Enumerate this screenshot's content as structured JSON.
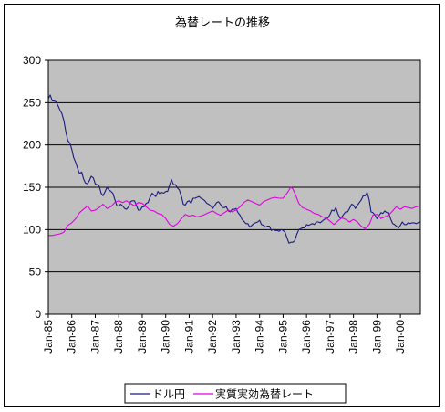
{
  "chart_data": {
    "type": "line",
    "title": "為替レートの推移",
    "x_tick_labels": [
      "Jan-85",
      "Jan-86",
      "Jan-87",
      "Jan-88",
      "Jan-89",
      "Jan-90",
      "Jan-91",
      "Jan-92",
      "Jan-93",
      "Jan-94",
      "Jan-95",
      "Jan-96",
      "Jan-97",
      "Jan-98",
      "Jan-99",
      "Jan-00"
    ],
    "x_start_year": 1985,
    "x_end_year": 2000.85,
    "ylim": [
      0,
      300
    ],
    "yticks": [
      0,
      50,
      100,
      150,
      200,
      250,
      300
    ],
    "grid": true,
    "legend_position": "bottom",
    "series": [
      {
        "name": "ドル円",
        "color": "#1a1a80",
        "points": [
          [
            1985.0,
            255
          ],
          [
            1985.08,
            259
          ],
          [
            1985.17,
            252
          ],
          [
            1985.25,
            252
          ],
          [
            1985.33,
            251
          ],
          [
            1985.42,
            246
          ],
          [
            1985.5,
            241
          ],
          [
            1985.58,
            237
          ],
          [
            1985.67,
            228
          ],
          [
            1985.75,
            215
          ],
          [
            1985.83,
            205
          ],
          [
            1985.92,
            202
          ],
          [
            1986.0,
            195
          ],
          [
            1986.08,
            185
          ],
          [
            1986.17,
            179
          ],
          [
            1986.25,
            172
          ],
          [
            1986.33,
            166
          ],
          [
            1986.42,
            168
          ],
          [
            1986.5,
            160
          ],
          [
            1986.58,
            155
          ],
          [
            1986.67,
            154
          ],
          [
            1986.75,
            158
          ],
          [
            1986.83,
            163
          ],
          [
            1986.92,
            161
          ],
          [
            1987.0,
            154
          ],
          [
            1987.08,
            153
          ],
          [
            1987.17,
            151
          ],
          [
            1987.25,
            143
          ],
          [
            1987.33,
            140
          ],
          [
            1987.42,
            145
          ],
          [
            1987.5,
            150
          ],
          [
            1987.58,
            147
          ],
          [
            1987.67,
            145
          ],
          [
            1987.75,
            143
          ],
          [
            1987.83,
            136
          ],
          [
            1987.92,
            128
          ],
          [
            1988.0,
            128
          ],
          [
            1988.08,
            130
          ],
          [
            1988.17,
            128
          ],
          [
            1988.25,
            125
          ],
          [
            1988.33,
            124
          ],
          [
            1988.42,
            127
          ],
          [
            1988.5,
            133
          ],
          [
            1988.58,
            134
          ],
          [
            1988.67,
            134
          ],
          [
            1988.75,
            129
          ],
          [
            1988.83,
            123
          ],
          [
            1988.92,
            123
          ],
          [
            1989.0,
            127
          ],
          [
            1989.08,
            127
          ],
          [
            1989.17,
            131
          ],
          [
            1989.25,
            132
          ],
          [
            1989.33,
            138
          ],
          [
            1989.42,
            143
          ],
          [
            1989.5,
            141
          ],
          [
            1989.58,
            139
          ],
          [
            1989.67,
            145
          ],
          [
            1989.75,
            142
          ],
          [
            1989.83,
            144
          ],
          [
            1989.92,
            143
          ],
          [
            1990.0,
            145
          ],
          [
            1990.08,
            145
          ],
          [
            1990.17,
            153
          ],
          [
            1990.25,
            159
          ],
          [
            1990.33,
            153
          ],
          [
            1990.42,
            153
          ],
          [
            1990.5,
            149
          ],
          [
            1990.58,
            147
          ],
          [
            1990.67,
            139
          ],
          [
            1990.75,
            130
          ],
          [
            1990.83,
            129
          ],
          [
            1990.92,
            133
          ],
          [
            1991.0,
            134
          ],
          [
            1991.08,
            131
          ],
          [
            1991.17,
            137
          ],
          [
            1991.25,
            137
          ],
          [
            1991.33,
            138
          ],
          [
            1991.42,
            139
          ],
          [
            1991.5,
            137
          ],
          [
            1991.58,
            136
          ],
          [
            1991.67,
            134
          ],
          [
            1991.75,
            131
          ],
          [
            1991.83,
            130
          ],
          [
            1991.92,
            128
          ],
          [
            1992.0,
            125
          ],
          [
            1992.08,
            128
          ],
          [
            1992.17,
            132
          ],
          [
            1992.25,
            133
          ],
          [
            1992.33,
            130
          ],
          [
            1992.42,
            126
          ],
          [
            1992.5,
            126
          ],
          [
            1992.58,
            127
          ],
          [
            1992.67,
            122
          ],
          [
            1992.75,
            121
          ],
          [
            1992.83,
            124
          ],
          [
            1992.92,
            124
          ],
          [
            1993.0,
            125
          ],
          [
            1993.08,
            120
          ],
          [
            1993.17,
            117
          ],
          [
            1993.25,
            112
          ],
          [
            1993.33,
            110
          ],
          [
            1993.42,
            107
          ],
          [
            1993.5,
            107
          ],
          [
            1993.58,
            103
          ],
          [
            1993.67,
            105
          ],
          [
            1993.75,
            107
          ],
          [
            1993.83,
            108
          ],
          [
            1993.92,
            109
          ],
          [
            1994.0,
            111
          ],
          [
            1994.08,
            106
          ],
          [
            1994.17,
            105
          ],
          [
            1994.25,
            103
          ],
          [
            1994.33,
            104
          ],
          [
            1994.42,
            104
          ],
          [
            1994.5,
            99
          ],
          [
            1994.58,
            100
          ],
          [
            1994.67,
            99
          ],
          [
            1994.75,
            99
          ],
          [
            1994.83,
            98
          ],
          [
            1994.92,
            100
          ],
          [
            1995.0,
            99
          ],
          [
            1995.08,
            97
          ],
          [
            1995.17,
            90
          ],
          [
            1995.25,
            84
          ],
          [
            1995.33,
            85
          ],
          [
            1995.42,
            85
          ],
          [
            1995.5,
            87
          ],
          [
            1995.58,
            94
          ],
          [
            1995.67,
            100
          ],
          [
            1995.75,
            101
          ],
          [
            1995.83,
            102
          ],
          [
            1995.92,
            102
          ],
          [
            1996.0,
            106
          ],
          [
            1996.08,
            105
          ],
          [
            1996.17,
            106
          ],
          [
            1996.25,
            107
          ],
          [
            1996.33,
            106
          ],
          [
            1996.42,
            109
          ],
          [
            1996.5,
            109
          ],
          [
            1996.58,
            108
          ],
          [
            1996.67,
            110
          ],
          [
            1996.75,
            112
          ],
          [
            1996.83,
            113
          ],
          [
            1996.92,
            114
          ],
          [
            1997.0,
            118
          ],
          [
            1997.08,
            123
          ],
          [
            1997.17,
            122
          ],
          [
            1997.25,
            126
          ],
          [
            1997.33,
            119
          ],
          [
            1997.42,
            114
          ],
          [
            1997.5,
            115
          ],
          [
            1997.58,
            118
          ],
          [
            1997.67,
            121
          ],
          [
            1997.75,
            121
          ],
          [
            1997.83,
            125
          ],
          [
            1997.92,
            130
          ],
          [
            1998.0,
            129
          ],
          [
            1998.08,
            125
          ],
          [
            1998.17,
            129
          ],
          [
            1998.25,
            132
          ],
          [
            1998.33,
            135
          ],
          [
            1998.42,
            140
          ],
          [
            1998.5,
            140
          ],
          [
            1998.58,
            144
          ],
          [
            1998.67,
            135
          ],
          [
            1998.75,
            121
          ],
          [
            1998.83,
            120
          ],
          [
            1998.92,
            117
          ],
          [
            1999.0,
            113
          ],
          [
            1999.08,
            116
          ],
          [
            1999.17,
            120
          ],
          [
            1999.25,
            119
          ],
          [
            1999.33,
            122
          ],
          [
            1999.42,
            120
          ],
          [
            1999.5,
            120
          ],
          [
            1999.58,
            113
          ],
          [
            1999.67,
            107
          ],
          [
            1999.75,
            106
          ],
          [
            1999.83,
            104
          ],
          [
            1999.92,
            102
          ],
          [
            2000.0,
            105
          ],
          [
            2000.08,
            109
          ],
          [
            2000.17,
            106
          ],
          [
            2000.25,
            106
          ],
          [
            2000.33,
            108
          ],
          [
            2000.42,
            107
          ],
          [
            2000.5,
            108
          ],
          [
            2000.58,
            108
          ],
          [
            2000.67,
            107
          ],
          [
            2000.75,
            108
          ],
          [
            2000.83,
            109
          ]
        ]
      },
      {
        "name": "実質実効為替レート",
        "color": "#e000e0",
        "points": [
          [
            1985.0,
            93
          ],
          [
            1985.17,
            93
          ],
          [
            1985.33,
            94
          ],
          [
            1985.5,
            95
          ],
          [
            1985.67,
            97
          ],
          [
            1985.83,
            105
          ],
          [
            1986.0,
            108
          ],
          [
            1986.17,
            113
          ],
          [
            1986.33,
            120
          ],
          [
            1986.5,
            124
          ],
          [
            1986.67,
            128
          ],
          [
            1986.83,
            122
          ],
          [
            1987.0,
            123
          ],
          [
            1987.17,
            126
          ],
          [
            1987.33,
            130
          ],
          [
            1987.5,
            125
          ],
          [
            1987.67,
            127
          ],
          [
            1987.83,
            132
          ],
          [
            1988.0,
            134
          ],
          [
            1988.17,
            132
          ],
          [
            1988.33,
            134
          ],
          [
            1988.5,
            131
          ],
          [
            1988.67,
            128
          ],
          [
            1988.83,
            132
          ],
          [
            1989.0,
            131
          ],
          [
            1989.17,
            127
          ],
          [
            1989.33,
            123
          ],
          [
            1989.5,
            122
          ],
          [
            1989.67,
            119
          ],
          [
            1989.83,
            118
          ],
          [
            1990.0,
            113
          ],
          [
            1990.17,
            106
          ],
          [
            1990.33,
            104
          ],
          [
            1990.5,
            107
          ],
          [
            1990.67,
            113
          ],
          [
            1990.83,
            118
          ],
          [
            1991.0,
            116
          ],
          [
            1991.17,
            117
          ],
          [
            1991.33,
            115
          ],
          [
            1991.5,
            116
          ],
          [
            1991.67,
            118
          ],
          [
            1991.83,
            120
          ],
          [
            1992.0,
            122
          ],
          [
            1992.17,
            119
          ],
          [
            1992.33,
            117
          ],
          [
            1992.5,
            120
          ],
          [
            1992.67,
            123
          ],
          [
            1992.83,
            121
          ],
          [
            1993.0,
            123
          ],
          [
            1993.17,
            127
          ],
          [
            1993.33,
            132
          ],
          [
            1993.5,
            135
          ],
          [
            1993.67,
            133
          ],
          [
            1993.83,
            131
          ],
          [
            1994.0,
            129
          ],
          [
            1994.17,
            133
          ],
          [
            1994.33,
            135
          ],
          [
            1994.5,
            137
          ],
          [
            1994.67,
            138
          ],
          [
            1994.83,
            137
          ],
          [
            1995.0,
            137
          ],
          [
            1995.17,
            143
          ],
          [
            1995.33,
            150
          ],
          [
            1995.42,
            148
          ],
          [
            1995.5,
            143
          ],
          [
            1995.67,
            131
          ],
          [
            1995.83,
            126
          ],
          [
            1996.0,
            124
          ],
          [
            1996.17,
            122
          ],
          [
            1996.33,
            119
          ],
          [
            1996.5,
            118
          ],
          [
            1996.67,
            115
          ],
          [
            1996.83,
            114
          ],
          [
            1997.0,
            110
          ],
          [
            1997.17,
            106
          ],
          [
            1997.33,
            110
          ],
          [
            1997.5,
            114
          ],
          [
            1997.67,
            112
          ],
          [
            1997.83,
            109
          ],
          [
            1998.0,
            112
          ],
          [
            1998.17,
            109
          ],
          [
            1998.33,
            104
          ],
          [
            1998.5,
            101
          ],
          [
            1998.67,
            106
          ],
          [
            1998.83,
            117
          ],
          [
            1999.0,
            118
          ],
          [
            1999.17,
            113
          ],
          [
            1999.33,
            115
          ],
          [
            1999.5,
            117
          ],
          [
            1999.67,
            122
          ],
          [
            1999.83,
            127
          ],
          [
            2000.0,
            124
          ],
          [
            2000.17,
            127
          ],
          [
            2000.33,
            126
          ],
          [
            2000.5,
            125
          ],
          [
            2000.67,
            127
          ],
          [
            2000.83,
            128
          ]
        ]
      }
    ]
  }
}
